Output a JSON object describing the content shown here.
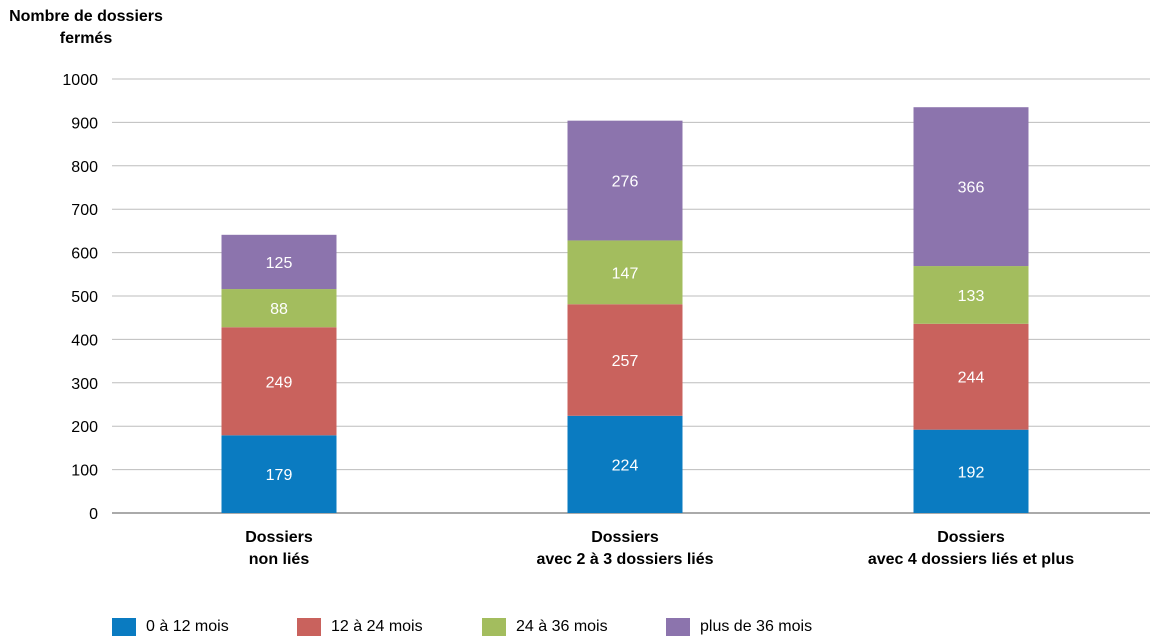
{
  "chart_data": {
    "type": "bar",
    "stacked": true,
    "ylabel": "Nombre de dossiers fermés",
    "ylim": [
      0,
      1000
    ],
    "yticks": [
      0,
      100,
      200,
      300,
      400,
      500,
      600,
      700,
      800,
      900,
      1000
    ],
    "grid": true,
    "legend_position": "bottom",
    "categories": [
      [
        "Dossiers",
        "non liés"
      ],
      [
        "Dossiers",
        "avec 2 à 3 dossiers liés"
      ],
      [
        "Dossiers",
        "avec 4 dossiers liés et plus"
      ]
    ],
    "series": [
      {
        "name": "0 à 12 mois",
        "color": "#0a7bc1",
        "values": [
          179,
          224,
          192
        ]
      },
      {
        "name": "12 à 24 mois",
        "color": "#c9625d",
        "values": [
          249,
          257,
          244
        ]
      },
      {
        "name": "24 à 36 mois",
        "color": "#a3bd5e",
        "values": [
          88,
          147,
          133
        ]
      },
      {
        "name": "plus de 36 mois",
        "color": "#8c74ad",
        "values": [
          125,
          276,
          366
        ]
      }
    ]
  }
}
